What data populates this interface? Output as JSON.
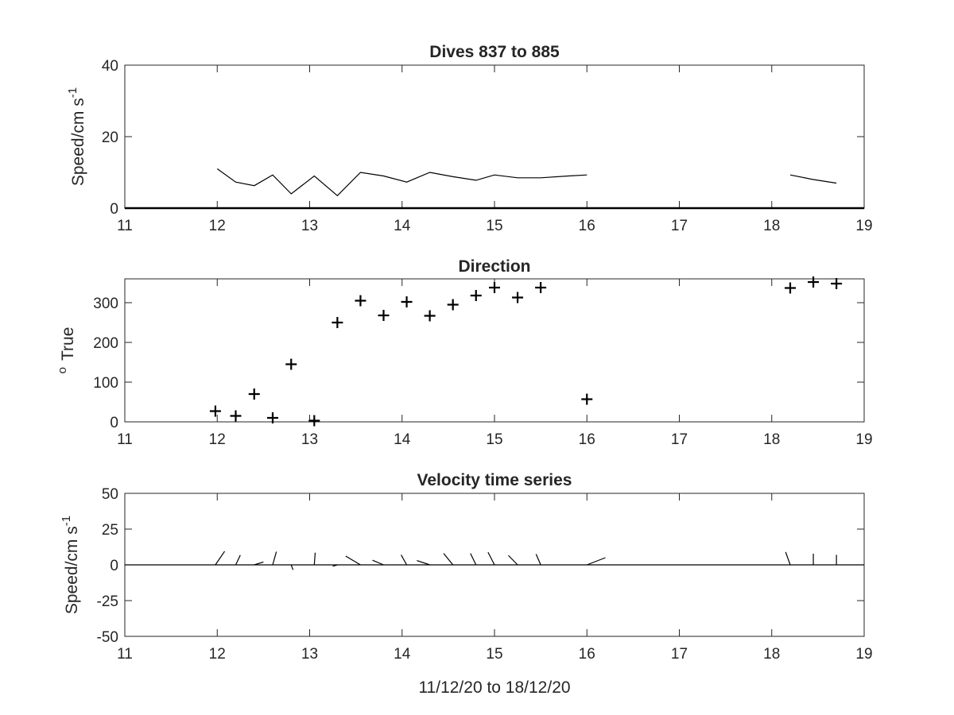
{
  "chart_data": [
    {
      "type": "line",
      "title": "Dives 837 to 885",
      "xlabel": "",
      "ylabel": "Speed/cm s",
      "ylabel_superscript": "-1",
      "xlim": [
        11,
        19
      ],
      "ylim": [
        0,
        40
      ],
      "xticks": [
        11,
        12,
        13,
        14,
        15,
        16,
        17,
        18,
        19
      ],
      "yticks": [
        0,
        20,
        40
      ],
      "grid": false,
      "series": [
        {
          "x": [
            12,
            12.2,
            12.4,
            12.6,
            12.8,
            13.05,
            13.3,
            13.55,
            13.8,
            14.05,
            14.3,
            14.55,
            14.8,
            15.0,
            15.25,
            15.5,
            15.8,
            16.0
          ],
          "y": [
            11,
            7.3,
            6.3,
            9.3,
            4,
            9,
            3.5,
            10,
            9,
            7.3,
            10,
            8.8,
            7.8,
            9.3,
            8.5,
            8.5,
            9,
            9.3
          ],
          "color": "#000000"
        },
        {
          "x": [
            18.2,
            18.45,
            18.7
          ],
          "y": [
            9.3,
            8,
            7
          ],
          "color": "#000000"
        },
        {
          "x": [
            11,
            19
          ],
          "y": [
            0,
            0
          ],
          "color": "#000000"
        }
      ]
    },
    {
      "type": "scatter",
      "title": "Direction",
      "xlabel": "",
      "ylabel": "True",
      "ylabel_prefix": "o",
      "xlim": [
        11,
        19
      ],
      "ylim": [
        0,
        360
      ],
      "xticks": [
        11,
        12,
        13,
        14,
        15,
        16,
        17,
        18,
        19
      ],
      "yticks": [
        0,
        100,
        200,
        300
      ],
      "grid": false,
      "marker": "+",
      "series": [
        {
          "x": [
            11.98,
            12.2,
            12.4,
            12.6,
            12.8,
            13.05,
            13.3,
            13.55,
            13.8,
            14.05,
            14.3,
            14.55,
            14.8,
            15.0,
            15.25,
            15.5,
            16.0,
            18.2,
            18.45,
            18.7
          ],
          "y": [
            27,
            15,
            70,
            10,
            145,
            3,
            250,
            305,
            268,
            302,
            267,
            295,
            318,
            338,
            313,
            338,
            57,
            337,
            352,
            348
          ],
          "color": "#000000"
        }
      ]
    },
    {
      "type": "line",
      "title": "Velocity time series",
      "xlabel": "11/12/20 to 18/12/20",
      "ylabel": "Speed/cm s",
      "ylabel_superscript": "-1",
      "xlim": [
        11,
        19
      ],
      "ylim": [
        -50,
        50
      ],
      "xticks": [
        11,
        12,
        13,
        14,
        15,
        16,
        17,
        18,
        19
      ],
      "yticks": [
        -50,
        -25,
        0,
        25,
        50
      ],
      "grid": false,
      "baseline": 0,
      "sticks": [
        {
          "x": 11.98,
          "dx": 0.1,
          "dy": 9.5
        },
        {
          "x": 12.2,
          "dx": 0.05,
          "dy": 6.8
        },
        {
          "x": 12.4,
          "dx": 0.1,
          "dy": 2
        },
        {
          "x": 12.6,
          "dx": 0.04,
          "dy": 9.2
        },
        {
          "x": 12.8,
          "dx": 0.02,
          "dy": -3.5
        },
        {
          "x": 13.05,
          "dx": 0.01,
          "dy": 8.5
        },
        {
          "x": 13.3,
          "dx": -0.05,
          "dy": -1
        },
        {
          "x": 13.55,
          "dx": -0.16,
          "dy": 6.1
        },
        {
          "x": 13.8,
          "dx": -0.12,
          "dy": 3.2
        },
        {
          "x": 14.05,
          "dx": -0.06,
          "dy": 7
        },
        {
          "x": 14.3,
          "dx": -0.14,
          "dy": 3
        },
        {
          "x": 14.55,
          "dx": -0.1,
          "dy": 8
        },
        {
          "x": 14.8,
          "dx": -0.06,
          "dy": 8
        },
        {
          "x": 15.0,
          "dx": -0.07,
          "dy": 8.8
        },
        {
          "x": 15.25,
          "dx": -0.1,
          "dy": 6.6
        },
        {
          "x": 15.5,
          "dx": -0.05,
          "dy": 7.5
        },
        {
          "x": 16.0,
          "dx": 0.2,
          "dy": 5
        },
        {
          "x": 18.2,
          "dx": -0.05,
          "dy": 9
        },
        {
          "x": 18.45,
          "dx": 0.0,
          "dy": 7.8
        },
        {
          "x": 18.7,
          "dx": 0.0,
          "dy": 7
        }
      ]
    }
  ]
}
